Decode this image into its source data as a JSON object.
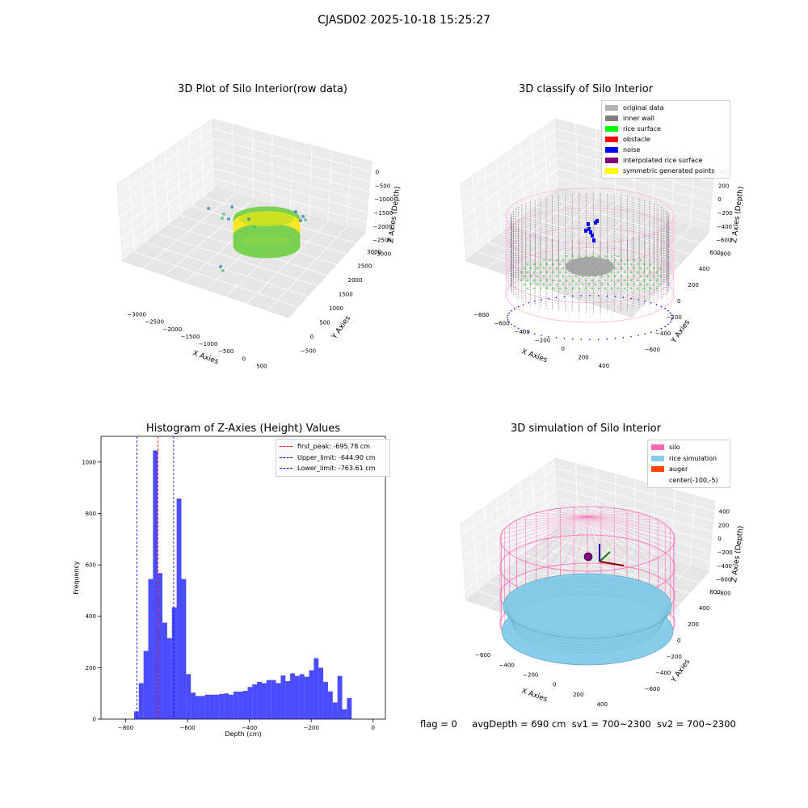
{
  "suptitle": "CJASD02 2025-10-18 15:25:27",
  "footer": {
    "flag": "flag = 0",
    "avg_depth": "avgDepth = 690 cm",
    "sv1": "sv1 = 700~2300",
    "sv2": "sv2 = 700~2300"
  },
  "chart_data": [
    {
      "type": "scatter",
      "subtype": "3d",
      "title": "3D Plot of Silo Interior(row data)",
      "xlabel": "X Axies",
      "ylabel": "Y Axies",
      "zlabel": "Z Axies (Depth)",
      "x_ticks": [
        "−3000",
        "−2500",
        "−2000",
        "−1500",
        "−1000",
        "−500",
        "0",
        "500"
      ],
      "y_ticks": [
        "−500",
        "0",
        "500",
        "1000",
        "1500",
        "2000",
        "2500",
        "3000"
      ],
      "z_ticks": [
        "0",
        "−500",
        "−1000",
        "−1500",
        "−2000",
        "−2500",
        "−3000"
      ],
      "colormap": [
        "#1f77b4",
        "#3fbc73",
        "#7ad151",
        "#fde725"
      ],
      "grid": true
    },
    {
      "type": "scatter",
      "subtype": "3d",
      "title": "3D classify of Silo Interior",
      "xlabel": "X Axies",
      "ylabel": "Y Axies",
      "zlabel": "Z Axies (Depth)",
      "x_ticks": [
        "−800",
        "−600",
        "−400",
        "−200",
        "0",
        "200",
        "400"
      ],
      "y_ticks": [
        "−600",
        "−400",
        "−200",
        "0",
        "200",
        "400",
        "600"
      ],
      "z_ticks": [
        "400",
        "200",
        "0",
        "−200",
        "−400",
        "−600",
        "−800"
      ],
      "legend_position": "top-right",
      "legend": [
        {
          "label": "original data",
          "color": "#b3b3b3"
        },
        {
          "label": "inner wall",
          "color": "#808080"
        },
        {
          "label": "rice surface",
          "color": "#00ff00"
        },
        {
          "label": "obstacle",
          "color": "#ff0000"
        },
        {
          "label": "noise",
          "color": "#0000ff"
        },
        {
          "label": "interpolated rice surface",
          "color": "#800080"
        },
        {
          "label": "symmetric generated points",
          "color": "#ffff00"
        }
      ],
      "grid": true
    },
    {
      "type": "bar",
      "subtype": "histogram",
      "title": "Histogram of Z-Axies (Height) Values",
      "xlabel": "Depth (cm)",
      "ylabel": "Frequency",
      "xlim": [
        -880,
        40
      ],
      "ylim": [
        0,
        1100
      ],
      "x_ticks": [
        -800,
        -600,
        -400,
        -200,
        0
      ],
      "y_ticks": [
        0,
        200,
        400,
        600,
        800,
        1000
      ],
      "bar_color": "#0000ff",
      "bar_alpha": 0.7,
      "bin_width": 15.3,
      "bins": [
        {
          "x0": -773,
          "value": 30
        },
        {
          "x0": -757.7,
          "value": 140
        },
        {
          "x0": -742.4,
          "value": 265
        },
        {
          "x0": -727.1,
          "value": 545
        },
        {
          "x0": -711.8,
          "value": 1045
        },
        {
          "x0": -696.5,
          "value": 568
        },
        {
          "x0": -681.2,
          "value": 375
        },
        {
          "x0": -665.9,
          "value": 315
        },
        {
          "x0": -650.6,
          "value": 435
        },
        {
          "x0": -635.3,
          "value": 858
        },
        {
          "x0": -620,
          "value": 545
        },
        {
          "x0": -604.7,
          "value": 175
        },
        {
          "x0": -589.4,
          "value": 103
        },
        {
          "x0": -574.1,
          "value": 90
        },
        {
          "x0": -558.8,
          "value": 90
        },
        {
          "x0": -543.5,
          "value": 95
        },
        {
          "x0": -528.2,
          "value": 95
        },
        {
          "x0": -512.9,
          "value": 95
        },
        {
          "x0": -497.6,
          "value": 98
        },
        {
          "x0": -482.3,
          "value": 100
        },
        {
          "x0": -467,
          "value": 95
        },
        {
          "x0": -451.7,
          "value": 107
        },
        {
          "x0": -436.4,
          "value": 107
        },
        {
          "x0": -421.1,
          "value": 110
        },
        {
          "x0": -405.8,
          "value": 125
        },
        {
          "x0": -390.5,
          "value": 135
        },
        {
          "x0": -375.2,
          "value": 145
        },
        {
          "x0": -359.9,
          "value": 140
        },
        {
          "x0": -344.6,
          "value": 152
        },
        {
          "x0": -329.3,
          "value": 152
        },
        {
          "x0": -314,
          "value": 140
        },
        {
          "x0": -298.7,
          "value": 170
        },
        {
          "x0": -283.4,
          "value": 148
        },
        {
          "x0": -268.1,
          "value": 178
        },
        {
          "x0": -252.8,
          "value": 168
        },
        {
          "x0": -237.5,
          "value": 175
        },
        {
          "x0": -222.2,
          "value": 165
        },
        {
          "x0": -206.9,
          "value": 190
        },
        {
          "x0": -191.6,
          "value": 237
        },
        {
          "x0": -176.3,
          "value": 200
        },
        {
          "x0": -161,
          "value": 145
        },
        {
          "x0": -145.7,
          "value": 108
        },
        {
          "x0": -130.4,
          "value": 65
        },
        {
          "x0": -115.1,
          "value": 168
        },
        {
          "x0": -99.8,
          "value": 38
        },
        {
          "x0": -84.5,
          "value": 82
        }
      ],
      "vlines": [
        {
          "x": -695.78,
          "color": "#ff0000",
          "label": "first_peak: -695.78 cm"
        },
        {
          "x": -644.9,
          "color": "#0000ff",
          "label": "Upper_limit: -644.90 cm"
        },
        {
          "x": -763.61,
          "color": "#0000ff",
          "label": "Lower_limit: -763.61 cm"
        }
      ],
      "legend_position": "top-right"
    },
    {
      "type": "scatter",
      "subtype": "3d-surface",
      "title": "3D simulation of Silo Interior",
      "xlabel": "X Axies",
      "ylabel": "Y Axies",
      "zlabel": "Z Axies (Depth)",
      "x_ticks": [
        "−600",
        "−400",
        "−200",
        "0",
        "200",
        "400"
      ],
      "y_ticks": [
        "−600",
        "−400",
        "−200",
        "0",
        "200",
        "400",
        "600"
      ],
      "z_ticks": [
        "400",
        "200",
        "0",
        "−200",
        "−400",
        "−600",
        "−800"
      ],
      "legend_position": "top-right",
      "legend": [
        {
          "label": "silo",
          "color": "#ff69b4"
        },
        {
          "label": "rice simulation",
          "color": "#87ceeb"
        },
        {
          "label": "auger",
          "color": "#ff4500"
        },
        {
          "label": "center(-100,-5)",
          "color": ""
        }
      ],
      "grid": true
    }
  ]
}
